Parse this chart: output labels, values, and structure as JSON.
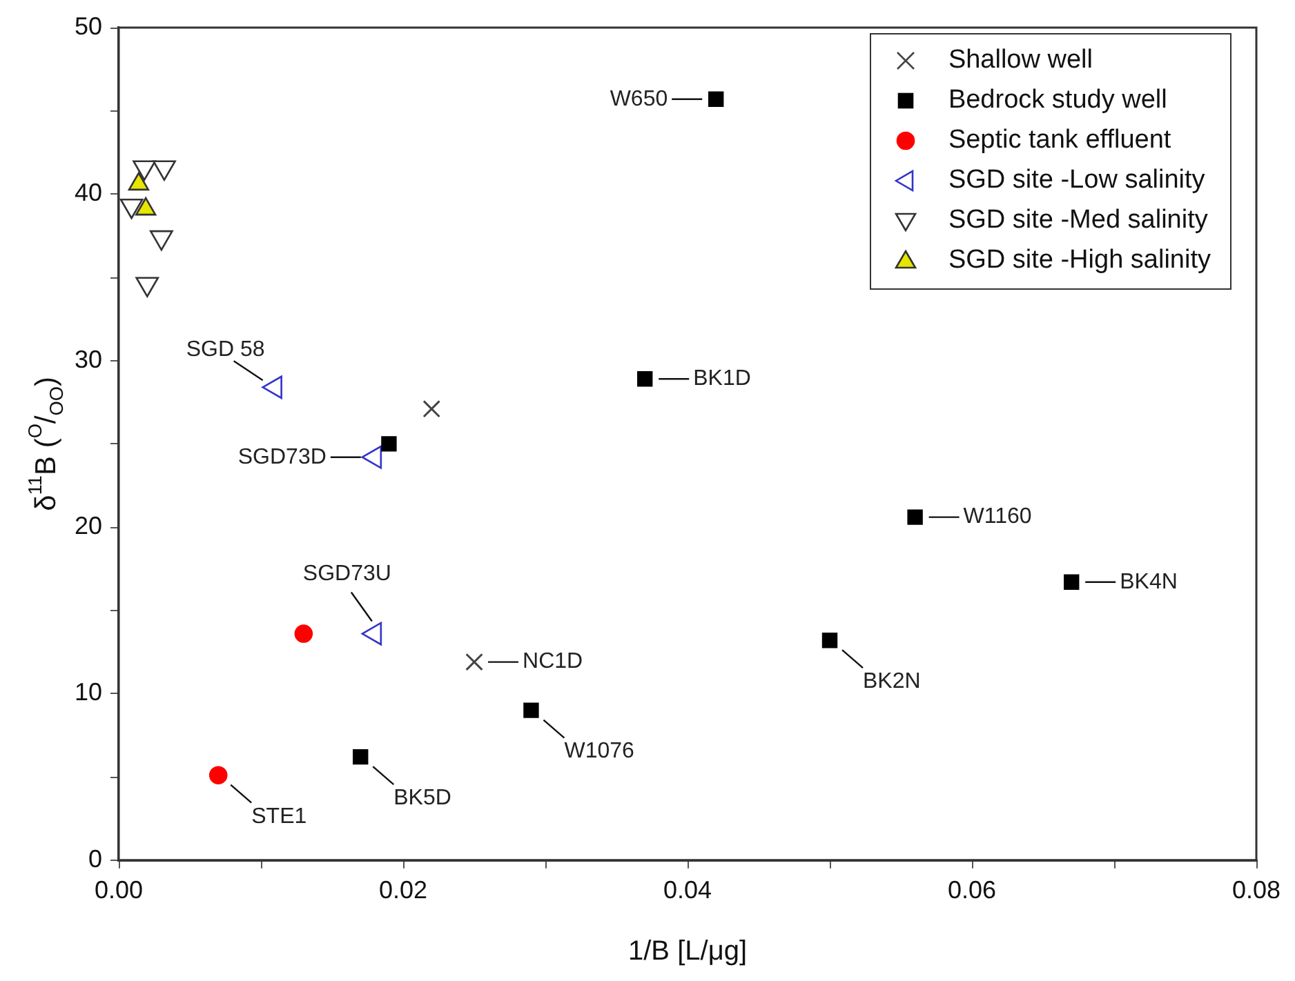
{
  "chart_data": {
    "type": "scatter",
    "xlabel": "1/B [L/μg]",
    "ylabel": "δ$^{11}$B ($^{O}$/$_{OO}$)",
    "xlim": [
      0,
      0.08
    ],
    "ylim": [
      0,
      50
    ],
    "xticks": [
      {
        "value": 0,
        "label": "0.00"
      },
      {
        "value": 0.01,
        "label": null
      },
      {
        "value": 0.02,
        "label": "0.02"
      },
      {
        "value": 0.03,
        "label": null
      },
      {
        "value": 0.04,
        "label": "0.04"
      },
      {
        "value": 0.05,
        "label": null
      },
      {
        "value": 0.06,
        "label": "0.06"
      },
      {
        "value": 0.07,
        "label": null
      },
      {
        "value": 0.08,
        "label": "0.08"
      }
    ],
    "yticks": [
      0,
      {
        "value": 5,
        "label": null
      },
      10,
      {
        "value": 15,
        "label": null
      },
      20,
      {
        "value": 25,
        "label": null
      },
      30,
      {
        "value": 35,
        "label": null
      },
      40,
      {
        "value": 45,
        "label": null
      },
      50
    ],
    "grid": false,
    "legend": "top right",
    "series": [
      {
        "name": "Shallow well",
        "color": "#444444",
        "marker": "cross",
        "x": [
          0.022,
          0.025
        ],
        "values": [
          27.1,
          11.9
        ]
      },
      {
        "name": "Bedrock study well",
        "color": "#000000",
        "marker": "square",
        "x": [
          0.042,
          0.037,
          0.056,
          0.067,
          0.05,
          0.029,
          0.017,
          0.019
        ],
        "values": [
          45.7,
          28.9,
          20.6,
          16.7,
          13.2,
          9.0,
          6.2,
          25.0
        ]
      },
      {
        "name": "Septic tank effluent",
        "color": "#ff0000",
        "marker": "circle",
        "x": [
          0.013,
          0.007
        ],
        "values": [
          13.6,
          5.1
        ]
      },
      {
        "name": "SGD site -Low salinity",
        "color": "#3333cc",
        "marker": "triangle-left",
        "x": [
          0.011,
          0.018,
          0.018
        ],
        "values": [
          28.4,
          24.2,
          13.6
        ]
      },
      {
        "name": "SGD site -Med salinity",
        "color": "#333333",
        "marker": "triangle-down",
        "x": [
          0.0018,
          0.0032,
          0.0009,
          0.003,
          0.002
        ],
        "values": [
          41.6,
          41.6,
          39.3,
          37.4,
          34.6
        ]
      },
      {
        "name": "SGD site -High salinity",
        "color": "#e6e600",
        "marker": "triangle",
        "x": [
          0.0014,
          0.0019
        ],
        "values": [
          40.6,
          39.1
        ]
      }
    ],
    "annotations": [
      {
        "text": "W650",
        "x": 0.042,
        "y": 45.7
      },
      {
        "text": "BK1D",
        "x": 0.037,
        "y": 28.9
      },
      {
        "text": "W1160",
        "x": 0.056,
        "y": 20.6
      },
      {
        "text": "BK4N",
        "x": 0.067,
        "y": 16.7
      },
      {
        "text": "BK2N",
        "x": 0.05,
        "y": 13.2
      },
      {
        "text": "W1076",
        "x": 0.029,
        "y": 9.0
      },
      {
        "text": "BK5D",
        "x": 0.017,
        "y": 6.2
      },
      {
        "text": "STE1",
        "x": 0.007,
        "y": 5.1
      },
      {
        "text": "NC1D",
        "x": 0.025,
        "y": 11.9
      },
      {
        "text": "SGD73U",
        "x": 0.018,
        "y": 13.6
      },
      {
        "text": "SGD73D",
        "x": 0.018,
        "y": 24.2
      },
      {
        "text": "SGD 58",
        "x": 0.011,
        "y": 28.4
      }
    ]
  }
}
